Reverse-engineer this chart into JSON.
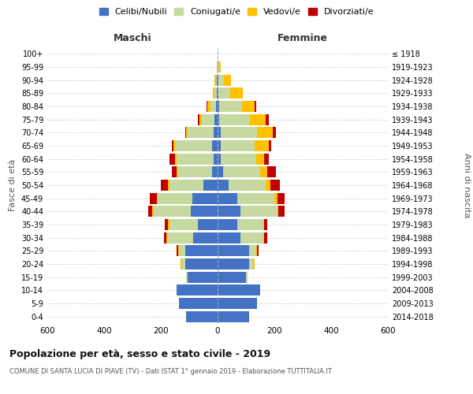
{
  "age_groups": [
    "0-4",
    "5-9",
    "10-14",
    "15-19",
    "20-24",
    "25-29",
    "30-34",
    "35-39",
    "40-44",
    "45-49",
    "50-54",
    "55-59",
    "60-64",
    "65-69",
    "70-74",
    "75-79",
    "80-84",
    "85-89",
    "90-94",
    "95-99",
    "100+"
  ],
  "birth_years": [
    "2014-2018",
    "2009-2013",
    "2004-2008",
    "1999-2003",
    "1994-1998",
    "1989-1993",
    "1984-1988",
    "1979-1983",
    "1974-1978",
    "1969-1973",
    "1964-1968",
    "1959-1963",
    "1954-1958",
    "1949-1953",
    "1944-1948",
    "1939-1943",
    "1934-1938",
    "1929-1933",
    "1924-1928",
    "1919-1923",
    "≤ 1918"
  ],
  "maschi": {
    "celibi": [
      110,
      135,
      145,
      105,
      115,
      115,
      85,
      70,
      95,
      90,
      50,
      20,
      15,
      20,
      15,
      10,
      5,
      2,
      2,
      0,
      0
    ],
    "coniugati": [
      0,
      0,
      0,
      5,
      10,
      20,
      90,
      100,
      130,
      120,
      120,
      120,
      130,
      130,
      90,
      45,
      20,
      8,
      3,
      0,
      0
    ],
    "vedovi": [
      0,
      0,
      0,
      0,
      5,
      5,
      5,
      5,
      5,
      5,
      5,
      5,
      5,
      5,
      5,
      10,
      10,
      8,
      5,
      3,
      0
    ],
    "divorziati": [
      0,
      0,
      0,
      0,
      0,
      5,
      10,
      10,
      15,
      25,
      25,
      15,
      20,
      5,
      5,
      5,
      5,
      0,
      0,
      0,
      0
    ]
  },
  "femmine": {
    "nubili": [
      110,
      140,
      150,
      100,
      110,
      110,
      80,
      70,
      80,
      70,
      40,
      20,
      10,
      10,
      10,
      5,
      5,
      4,
      2,
      0,
      0
    ],
    "coniugate": [
      0,
      0,
      0,
      5,
      15,
      25,
      80,
      90,
      130,
      130,
      130,
      130,
      125,
      120,
      130,
      110,
      80,
      40,
      20,
      5,
      0
    ],
    "vedove": [
      0,
      0,
      0,
      0,
      5,
      5,
      5,
      5,
      5,
      10,
      15,
      25,
      30,
      50,
      55,
      55,
      45,
      45,
      25,
      5,
      0
    ],
    "divorziate": [
      0,
      0,
      0,
      0,
      0,
      5,
      10,
      10,
      20,
      25,
      35,
      30,
      15,
      10,
      10,
      10,
      5,
      0,
      0,
      0,
      0
    ]
  },
  "colors": {
    "celibi": "#4472c4",
    "coniugati": "#c5d9a0",
    "vedovi": "#ffc000",
    "divorziati": "#c00000"
  },
  "legend_labels": [
    "Celibi/Nubili",
    "Coniugati/e",
    "Vedovi/e",
    "Divorziati/e"
  ],
  "title": "Popolazione per età, sesso e stato civile - 2019",
  "subtitle": "COMUNE DI SANTA LUCIA DI PIAVE (TV) - Dati ISTAT 1° gennaio 2019 - Elaborazione TUTTITALIA.IT",
  "xlabel_left": "Maschi",
  "xlabel_right": "Femmine",
  "ylabel_left": "Fasce di età",
  "ylabel_right": "Anni di nascita",
  "xlim": 600,
  "bg_color": "#ffffff",
  "grid_color": "#cccccc"
}
